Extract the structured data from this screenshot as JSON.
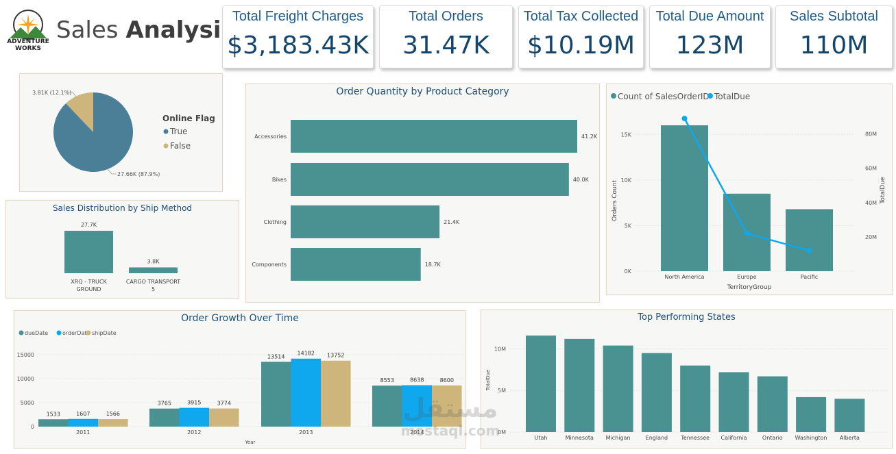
{
  "header": {
    "logo_line1": "ADVENTURE",
    "logo_line2": "WORKS",
    "title_light": "Sales",
    "title_bold": "Analysis"
  },
  "kpis": [
    {
      "title": "Total Freight Charges",
      "value": "$3,183.43K"
    },
    {
      "title": "Total Orders",
      "value": "31.47K"
    },
    {
      "title": "Total Tax Collected",
      "value": "$10.19M"
    },
    {
      "title": "Total Due Amount",
      "value": "123M"
    },
    {
      "title": "Sales Subtotal",
      "value": "110M"
    }
  ],
  "colors": {
    "teal": "#4a9192",
    "blue": "#0fa7ee",
    "tan": "#cdb57c",
    "pie_true": "#4b7f98",
    "pie_false": "#cdb57c"
  },
  "watermark": {
    "arabic": "مستقل",
    "latin": "mostaql.com"
  },
  "chart_data": [
    {
      "type": "pie",
      "legend_title": "Online Flag",
      "labels": [
        "True",
        "False"
      ],
      "values": [
        27.66,
        3.81
      ],
      "data_labels": [
        "27.66K (87.9%)",
        "3.81K (12.1%)"
      ]
    },
    {
      "type": "bar",
      "title": "Sales Distribution by Ship Method",
      "categories": [
        "XRQ - TRUCK GROUND",
        "CARGO TRANSPORT 5"
      ],
      "category_lines": [
        [
          "XRQ - TRUCK",
          "GROUND"
        ],
        [
          "CARGO TRANSPORT",
          "5"
        ]
      ],
      "values": [
        27.7,
        3.8
      ],
      "data_labels": [
        "27.7K",
        "3.8K"
      ]
    },
    {
      "type": "bar",
      "orientation": "horizontal",
      "title": "Order Quantity by Product Category",
      "categories": [
        "Accessories",
        "Bikes",
        "Clothing",
        "Components"
      ],
      "values": [
        41.2,
        40.0,
        21.4,
        18.7
      ],
      "data_labels": [
        "41.2K",
        "40.0K",
        "21.4K",
        "18.7K"
      ]
    },
    {
      "type": "bar",
      "combo": "bar+line",
      "legend": [
        "Count of SalesOrderID",
        "TotalDue"
      ],
      "categories": [
        "North America",
        "Europe",
        "Pacific"
      ],
      "series": [
        {
          "name": "Count of SalesOrderID",
          "type": "bar",
          "values": [
            16000,
            8500,
            6800
          ]
        },
        {
          "name": "TotalDue",
          "type": "line",
          "values": [
            89000000,
            22000000,
            12000000
          ]
        }
      ],
      "xlabel": "TerritoryGroup",
      "ylabel": "Orders Count",
      "y2label": "TotalDue",
      "y_ticks": [
        "0K",
        "5K",
        "10K",
        "15K"
      ],
      "y2_ticks": [
        "20M",
        "40M",
        "60M",
        "80M"
      ],
      "ylim": [
        0,
        17500
      ],
      "y2lim": [
        0,
        93000000
      ]
    },
    {
      "type": "bar",
      "grouped": true,
      "title": "Order Growth Over Time",
      "legend": [
        "dueDate",
        "orderDate",
        "shipDate"
      ],
      "categories": [
        "2011",
        "2012",
        "2013",
        "2014"
      ],
      "series": [
        {
          "name": "dueDate",
          "values": [
            1533,
            3765,
            13514,
            8553
          ]
        },
        {
          "name": "orderDate",
          "values": [
            1607,
            3915,
            14182,
            8638
          ]
        },
        {
          "name": "shipDate",
          "values": [
            1566,
            3774,
            13752,
            8600
          ]
        }
      ],
      "xlabel": "Year",
      "y_ticks": [
        "0",
        "5000",
        "10000",
        "15000"
      ],
      "ylim": [
        0,
        17000
      ]
    },
    {
      "type": "bar",
      "title": "Top Performing States",
      "categories": [
        "Utah",
        "Minnesota",
        "Michigan",
        "England",
        "Tennessee",
        "California",
        "Ontario",
        "Washington",
        "Alberta"
      ],
      "values": [
        11600000,
        11200000,
        10400000,
        9500000,
        8000000,
        7200000,
        6700000,
        4200000,
        4000000
      ],
      "ylabel": "TotalDue",
      "y_ticks": [
        "0M",
        "5M",
        "10M"
      ],
      "ylim": [
        0,
        13000000
      ]
    }
  ]
}
